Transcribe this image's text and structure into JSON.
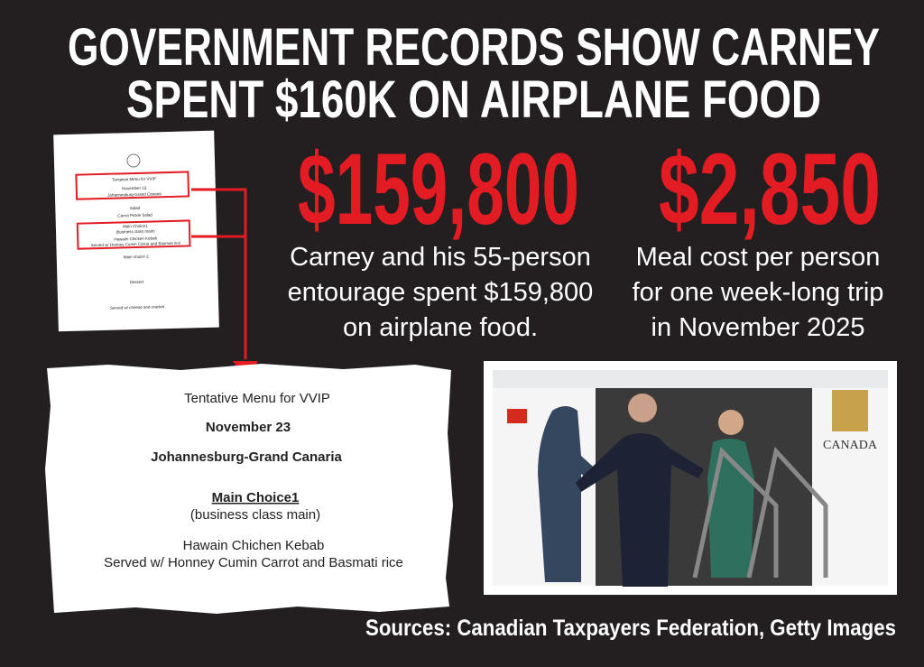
{
  "headline": {
    "lines": [
      "GOVERNMENT RECORDS SHOW CARNEY",
      "SPENT $160K ON AIRPLANE FOOD"
    ]
  },
  "stats": [
    {
      "figure": "$159,800",
      "caption": [
        "Carney and his 55-person",
        "entourage spent $159,800",
        "on airplane food."
      ]
    },
    {
      "figure": "$2,850",
      "caption": [
        "Meal cost per person",
        "for one week-long trip",
        "in November 2025"
      ]
    }
  ],
  "menu_thumbnail": {
    "lines": [
      "Tentative Menu for VVIP",
      "November 23",
      "Johannesburg-Grand Canaria",
      "Salad",
      "Carrot Pickle Salad",
      "Main Choice1",
      "(business class main)",
      "Hawaiin Chicken Kebab",
      "Served w/ Honney Cumin Carrot and Basmati rice",
      "Main choice 2",
      "Dessert",
      "Served w/ cheese and cracker"
    ]
  },
  "menu_excerpt": {
    "lines": [
      "Tentative Menu for VVIP",
      "November 23",
      "Johannesburg-Grand Canaria",
      "Main Choice1",
      "(business class main)",
      "Hawain Chichen Kebab",
      "Served w/ Honney Cumin Carrot and Basmati rice"
    ]
  },
  "photo": {
    "plane_text": "CANADA"
  },
  "sources": "Sources: Canadian Taxpayers Federation, Getty Images"
}
